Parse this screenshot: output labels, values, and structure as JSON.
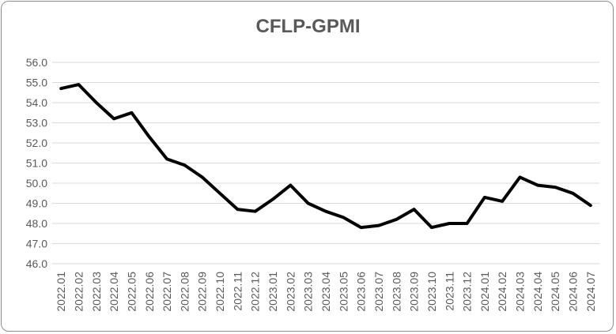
{
  "chart_data": {
    "type": "line",
    "title": "CFLP-GPMI",
    "xlabel": "",
    "ylabel": "",
    "ylim": [
      46.0,
      56.0
    ],
    "yticks": [
      "46.0",
      "47.0",
      "48.0",
      "49.0",
      "50.0",
      "51.0",
      "52.0",
      "53.0",
      "54.0",
      "55.0",
      "56.0"
    ],
    "grid": true,
    "legend": "none",
    "categories": [
      "2022.01",
      "2022.02",
      "2022.03",
      "2022.04",
      "2022.05",
      "2022.06",
      "2022.07",
      "2022.08",
      "2022.09",
      "2022.10",
      "2022.11",
      "2022.12",
      "2023.01",
      "2023.02",
      "2023.03",
      "2023.04",
      "2023.05",
      "2023.06",
      "2023.07",
      "2023.08",
      "2023.09",
      "2023.10",
      "2023.11",
      "2023.12",
      "2024.01",
      "2024.02",
      "2024.03",
      "2024.04",
      "2024.05",
      "2024.06",
      "2024.07"
    ],
    "series": [
      {
        "name": "",
        "color": "#000000",
        "values": [
          54.7,
          54.9,
          54.0,
          53.2,
          53.5,
          52.3,
          51.2,
          50.9,
          50.3,
          49.5,
          48.7,
          48.6,
          49.2,
          49.9,
          49.0,
          48.6,
          48.3,
          47.8,
          47.9,
          48.2,
          48.7,
          47.8,
          48.0,
          48.0,
          49.3,
          49.1,
          50.3,
          49.9,
          49.8,
          49.5,
          48.9
        ]
      }
    ]
  }
}
